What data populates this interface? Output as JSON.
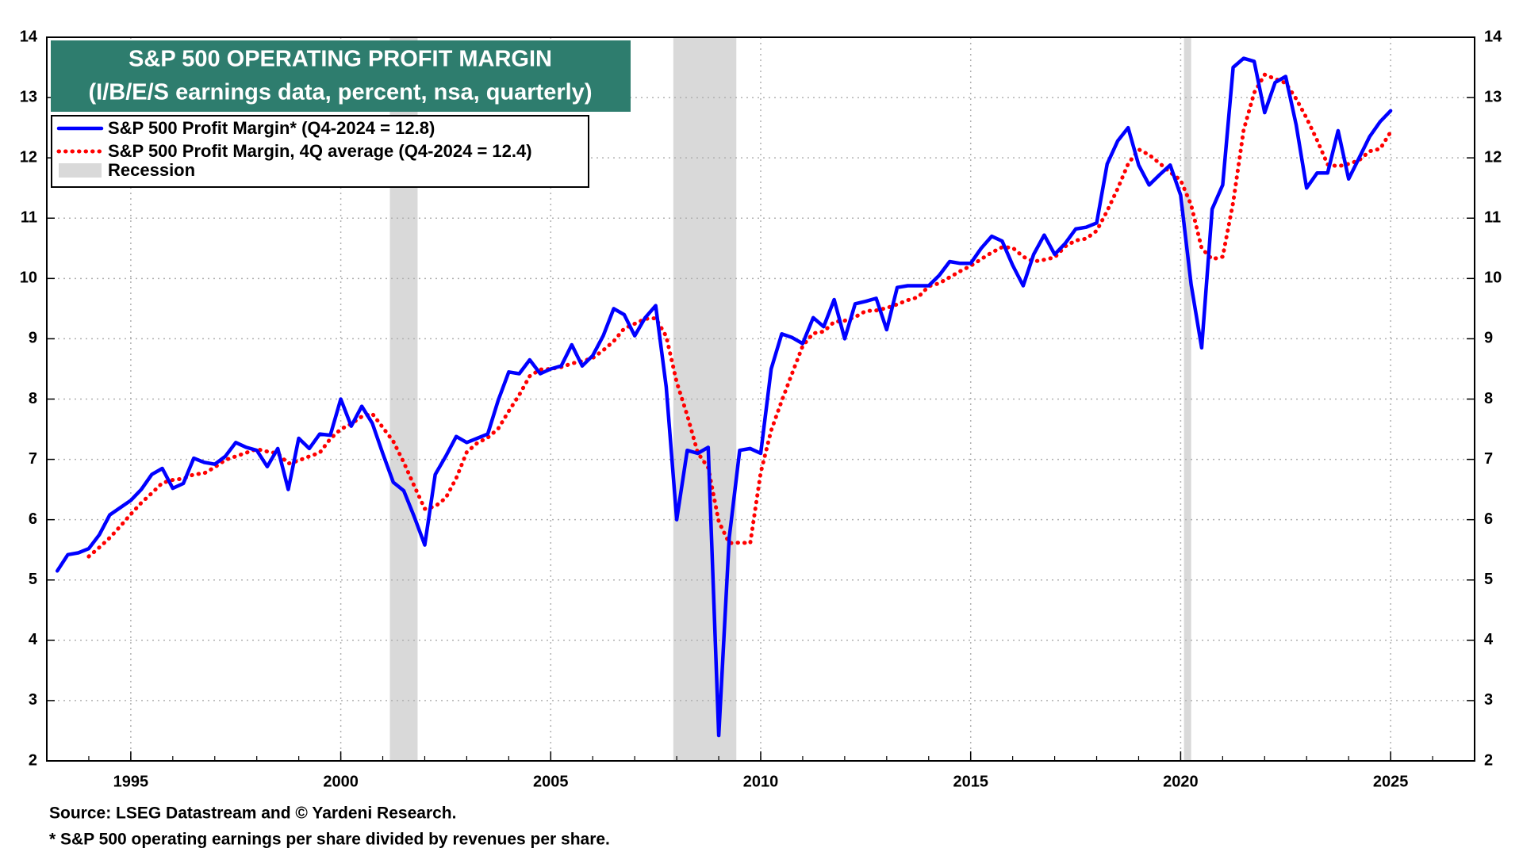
{
  "chart_data": {
    "type": "line",
    "title": "S&P 500 OPERATING PROFIT MARGIN",
    "subtitle": "(I/B/E/S earnings data, percent, nsa, quarterly)",
    "source": "Source: LSEG Datastream and © Yardeni Research.",
    "note": "* S&P 500 operating earnings per share divided by revenues per share.",
    "x": [
      1993.25,
      1993.5,
      1993.75,
      1994,
      1994.25,
      1994.5,
      1994.75,
      1995,
      1995.25,
      1995.5,
      1995.75,
      1996,
      1996.25,
      1996.5,
      1996.75,
      1997,
      1997.25,
      1997.5,
      1997.75,
      1998,
      1998.25,
      1998.5,
      1998.75,
      1999,
      1999.25,
      1999.5,
      1999.75,
      2000,
      2000.25,
      2000.5,
      2000.75,
      2001,
      2001.25,
      2001.5,
      2001.75,
      2002,
      2002.25,
      2002.5,
      2002.75,
      2003,
      2003.25,
      2003.5,
      2003.75,
      2004,
      2004.25,
      2004.5,
      2004.75,
      2005,
      2005.25,
      2005.5,
      2005.75,
      2006,
      2006.25,
      2006.5,
      2006.75,
      2007,
      2007.25,
      2007.5,
      2007.75,
      2008,
      2008.25,
      2008.5,
      2008.75,
      2009,
      2009.25,
      2009.5,
      2009.75,
      2010,
      2010.25,
      2010.5,
      2010.75,
      2011,
      2011.25,
      2011.5,
      2011.75,
      2012,
      2012.25,
      2012.5,
      2012.75,
      2013,
      2013.25,
      2013.5,
      2013.75,
      2014,
      2014.25,
      2014.5,
      2014.75,
      2015,
      2015.25,
      2015.5,
      2015.75,
      2016,
      2016.25,
      2016.5,
      2016.75,
      2017,
      2017.25,
      2017.5,
      2017.75,
      2018,
      2018.25,
      2018.5,
      2018.75,
      2019,
      2019.25,
      2019.5,
      2019.75,
      2020,
      2020.25,
      2020.5,
      2020.75,
      2021,
      2021.25,
      2021.5,
      2021.75,
      2022,
      2022.25,
      2022.5,
      2022.75,
      2023,
      2023.25,
      2023.5,
      2023.75,
      2024,
      2024.25,
      2024.5,
      2024.75,
      2025
    ],
    "series": [
      {
        "name": "S&P 500 Profit Margin* (Q4-2024 = 12.8)",
        "color": "#0000ff",
        "style": "solid",
        "values": [
          5.15,
          5.42,
          5.45,
          5.52,
          5.75,
          6.08,
          6.2,
          6.32,
          6.5,
          6.75,
          6.85,
          6.52,
          6.6,
          7.02,
          6.95,
          6.92,
          7.05,
          7.28,
          7.2,
          7.15,
          6.88,
          7.18,
          6.5,
          7.35,
          7.18,
          7.42,
          7.4,
          8.0,
          7.55,
          7.88,
          7.6,
          7.1,
          6.62,
          6.48,
          6.05,
          5.58,
          6.75,
          7.05,
          7.38,
          7.28,
          7.35,
          7.42,
          7.98,
          8.45,
          8.42,
          8.65,
          8.42,
          8.5,
          8.55,
          8.9,
          8.55,
          8.72,
          9.05,
          9.5,
          9.4,
          9.05,
          9.35,
          9.55,
          8.2,
          6.0,
          7.15,
          7.1,
          7.2,
          2.42,
          5.7,
          7.15,
          7.18,
          7.1,
          8.5,
          9.08,
          9.02,
          8.92,
          9.35,
          9.2,
          9.65,
          9.0,
          9.58,
          9.62,
          9.67,
          9.15,
          9.85,
          9.88,
          9.88,
          9.88,
          10.05,
          10.28,
          10.25,
          10.25,
          10.5,
          10.7,
          10.62,
          10.22,
          9.88,
          10.4,
          10.72,
          10.4,
          10.58,
          10.82,
          10.85,
          10.92,
          11.9,
          12.28,
          12.5,
          11.88,
          11.55,
          11.72,
          11.88,
          11.38,
          9.9,
          8.85,
          11.15,
          11.55,
          13.5,
          13.65,
          13.6,
          12.75,
          13.25,
          13.35,
          12.55,
          11.5,
          11.75,
          11.75,
          12.45,
          11.65,
          12.0,
          12.35,
          12.6,
          12.78
        ]
      },
      {
        "name": "S&P 500 Profit Margin, 4Q average (Q4-2024 = 12.4)",
        "color": "#ff0000",
        "style": "dotted",
        "values": [
          null,
          null,
          null,
          5.39,
          5.54,
          5.7,
          5.89,
          6.09,
          6.28,
          6.44,
          6.61,
          6.66,
          6.68,
          6.75,
          6.77,
          6.87,
          6.99,
          7.05,
          7.11,
          7.17,
          7.13,
          7.1,
          6.93,
          6.98,
          7.05,
          7.11,
          7.34,
          7.5,
          7.59,
          7.71,
          7.76,
          7.53,
          7.3,
          6.95,
          6.56,
          6.18,
          6.22,
          6.36,
          6.69,
          7.12,
          7.27,
          7.36,
          7.51,
          7.8,
          8.07,
          8.38,
          8.49,
          8.5,
          8.53,
          8.59,
          8.63,
          8.68,
          8.81,
          8.96,
          9.17,
          9.25,
          9.33,
          9.34,
          9.04,
          8.28,
          7.73,
          7.11,
          6.86,
          5.97,
          5.61,
          5.62,
          5.61,
          6.78,
          7.48,
          7.97,
          8.43,
          8.88,
          9.09,
          9.12,
          9.28,
          9.3,
          9.36,
          9.46,
          9.47,
          9.51,
          9.57,
          9.64,
          9.69,
          9.87,
          9.92,
          10.02,
          10.12,
          10.21,
          10.32,
          10.43,
          10.52,
          10.51,
          10.36,
          10.28,
          10.31,
          10.35,
          10.53,
          10.63,
          10.66,
          10.79,
          11.12,
          11.49,
          11.9,
          12.14,
          12.05,
          11.91,
          11.76,
          11.63,
          11.22,
          10.5,
          10.32,
          10.36,
          11.26,
          12.46,
          13.08,
          13.38,
          13.31,
          13.24,
          12.98,
          12.66,
          12.29,
          11.89,
          11.86,
          11.9,
          11.96,
          12.11,
          12.15,
          12.43
        ]
      }
    ],
    "recession": {
      "name": "Recession",
      "color": "#d9d9d9",
      "periods": [
        [
          2001.17,
          2001.83
        ],
        [
          2007.92,
          2009.42
        ],
        [
          2020.08,
          2020.25
        ]
      ]
    },
    "xlim": [
      1993,
      2027
    ],
    "ylim": [
      2,
      14
    ],
    "xticks": [
      1995,
      2000,
      2005,
      2010,
      2015,
      2020,
      2025
    ],
    "yticks": [
      2,
      3,
      4,
      5,
      6,
      7,
      8,
      9,
      10,
      11,
      12,
      13,
      14
    ],
    "grid": true,
    "title_color": "#2e7d6e"
  }
}
